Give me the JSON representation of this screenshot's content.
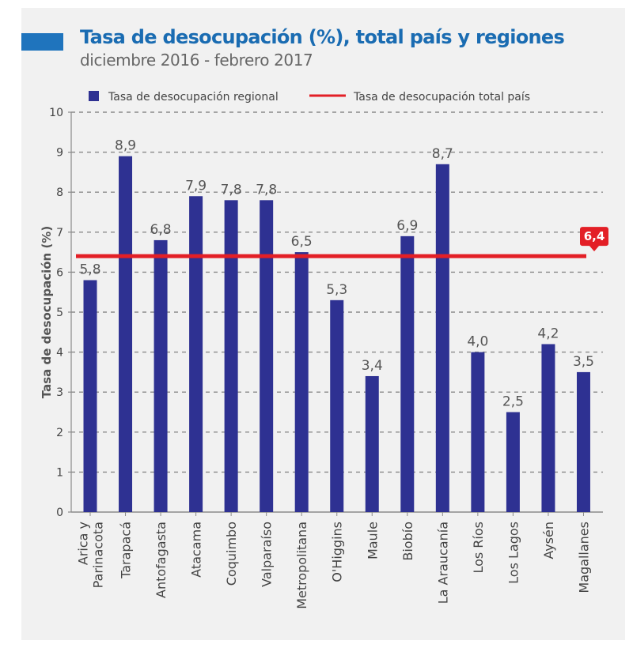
{
  "title": "Tasa de desocupación (%), total país y regiones",
  "subtitle": "diciembre 2016 - febrero 2017",
  "colors": {
    "bar": "#2e3192",
    "line": "#e31f26",
    "title": "#1a6cb2",
    "accent": "#1f74bd"
  },
  "chart_data": {
    "type": "bar",
    "ylabel": "Tasa de desocupación (%)",
    "xlabel": "",
    "ylim": [
      0,
      10
    ],
    "yticks": [
      "0",
      "1",
      "2",
      "3",
      "4",
      "5",
      "6",
      "7",
      "8",
      "9",
      "10"
    ],
    "grid": true,
    "legend_position": "top",
    "categories": [
      [
        "Arica y",
        "Parinacota"
      ],
      [
        "Tarapacá"
      ],
      [
        "Antofagasta"
      ],
      [
        "Atacama"
      ],
      [
        "Coquimbo"
      ],
      [
        "Valparaíso"
      ],
      [
        "Metropolitana"
      ],
      [
        "O'Higgins"
      ],
      [
        "Maule"
      ],
      [
        "Biobío"
      ],
      [
        "La Araucanía"
      ],
      [
        "Los Ríos"
      ],
      [
        "Los Lagos"
      ],
      [
        "Aysén"
      ],
      [
        "Magallanes"
      ]
    ],
    "series": [
      {
        "name": "Tasa de desocupación regional",
        "type": "bar",
        "values": [
          5.8,
          8.9,
          6.8,
          7.9,
          7.8,
          7.8,
          6.5,
          5.3,
          3.4,
          6.9,
          8.7,
          4.0,
          2.5,
          4.2,
          3.5
        ],
        "labels": [
          "5,8",
          "8,9",
          "6,8",
          "7,9",
          "7,8",
          "7,8",
          "6,5",
          "5,3",
          "3,4",
          "6,9",
          "8,7",
          "4,0",
          "2,5",
          "4,2",
          "3,5"
        ]
      },
      {
        "name": "Tasa de desocupación total país",
        "type": "line",
        "value": 6.4,
        "label": "6,4"
      }
    ]
  }
}
